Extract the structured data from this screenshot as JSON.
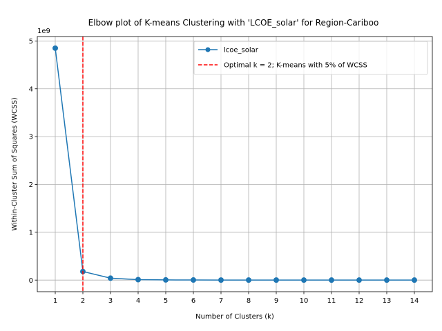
{
  "chart_data": {
    "type": "line",
    "title": "Elbow plot of K-means Clustering with 'LCOE_solar' for Region-Cariboo",
    "xlabel": "Number of Clusters (k)",
    "ylabel": "Within-Cluster Sum of Squares (WCSS)",
    "y_offset_label": "1e9",
    "x": [
      1,
      2,
      3,
      4,
      5,
      6,
      7,
      8,
      9,
      10,
      11,
      12,
      13,
      14
    ],
    "x_ticks": [
      "1",
      "2",
      "3",
      "4",
      "5",
      "6",
      "7",
      "8",
      "9",
      "10",
      "11",
      "12",
      "13",
      "14"
    ],
    "y_ticks": [
      "0",
      "1",
      "2",
      "3",
      "4",
      "5"
    ],
    "y_tick_values": [
      0,
      1,
      2,
      3,
      4,
      5
    ],
    "series": [
      {
        "name": "lcoe_solar",
        "color": "#1f77b4",
        "values": [
          4.85,
          0.18,
          0.04,
          0.01,
          0.004,
          0.002,
          0.001,
          0.0008,
          0.0006,
          0.0005,
          0.0004,
          0.0003,
          0.0002,
          0.0002
        ]
      }
    ],
    "vline": {
      "x": 2,
      "label": "Optimal k = 2; K-means with 5% of WCSS",
      "color": "#ff0000"
    },
    "xlim": [
      0.35,
      14.65
    ],
    "ylim": [
      -0.2425,
      5.0925
    ],
    "grid": true,
    "legend_position": "top-right"
  }
}
